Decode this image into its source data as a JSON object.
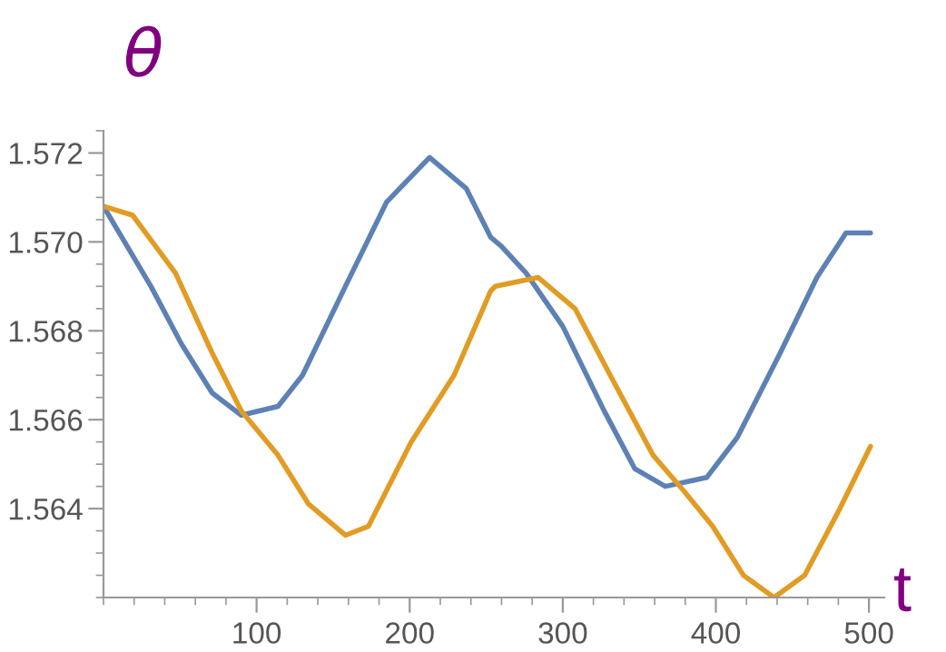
{
  "chart_data": {
    "type": "line",
    "xlabel": "t",
    "ylabel": "θ",
    "xlim": [
      0,
      510
    ],
    "ylim": [
      1.562,
      1.5725
    ],
    "xticks": [
      100,
      200,
      300,
      400,
      500
    ],
    "yticks": [
      {
        "value": 1.564,
        "label": "1.564"
      },
      {
        "value": 1.566,
        "label": "1.566"
      },
      {
        "value": 1.568,
        "label": "1.568"
      },
      {
        "value": 1.57,
        "label": "1.570"
      },
      {
        "value": 1.572,
        "label": "1.572"
      }
    ],
    "grid": false,
    "series": [
      {
        "color": "#5e81b5",
        "x": [
          0,
          31,
          51,
          71,
          90,
          114,
          130,
          158,
          185,
          213,
          237,
          253,
          260,
          276,
          300,
          327,
          347,
          367,
          394,
          414,
          442,
          466,
          485,
          501
        ],
        "values": [
          1.5708,
          1.569,
          1.5677,
          1.5666,
          1.5661,
          1.5663,
          1.567,
          1.569,
          1.5709,
          1.5719,
          1.5712,
          1.5701,
          1.5699,
          1.5693,
          1.5681,
          1.5662,
          1.5649,
          1.5645,
          1.5647,
          1.5656,
          1.5675,
          1.5692,
          1.5702,
          1.5702
        ]
      },
      {
        "color": "#e19c24",
        "x": [
          0,
          19,
          47,
          71,
          90,
          114,
          134,
          158,
          173,
          201,
          229,
          253,
          256,
          284,
          308,
          331,
          359,
          379,
          398,
          418,
          438,
          458,
          481,
          501
        ],
        "values": [
          1.5708,
          1.5706,
          1.5693,
          1.5675,
          1.5662,
          1.5652,
          1.5641,
          1.5634,
          1.5636,
          1.5655,
          1.567,
          1.5689,
          1.569,
          1.5692,
          1.5685,
          1.567,
          1.5652,
          1.5644,
          1.5636,
          1.5625,
          1.562,
          1.5625,
          1.564,
          1.5654
        ]
      }
    ]
  }
}
